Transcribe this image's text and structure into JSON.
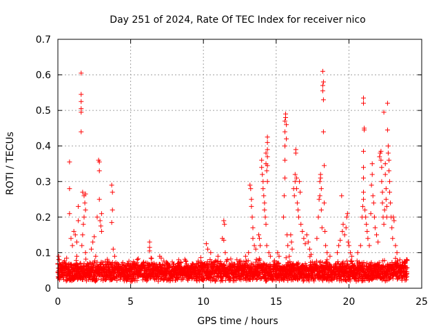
{
  "chart_data": {
    "type": "scatter",
    "title": "Day 251 of 2024, Rate Of TEC Index for receiver nico",
    "xlabel": "GPS time / hours",
    "ylabel": "ROTI / TECUs",
    "xlim": [
      0,
      25
    ],
    "ylim": [
      0,
      0.7
    ],
    "xticks": [
      0,
      5,
      10,
      15,
      20,
      25
    ],
    "yticks": [
      0,
      0.1,
      0.2,
      0.3,
      0.4,
      0.5,
      0.6,
      0.7
    ],
    "grid": true,
    "marker": "+",
    "color": "#ff0000",
    "background_band": {
      "x_range": [
        0,
        24
      ],
      "baseline": 0.04,
      "spread": 0.035
    },
    "points": [
      [
        0.05,
        0.09
      ],
      [
        0.1,
        0.08
      ],
      [
        0.3,
        0.07
      ],
      [
        0.6,
        0.085
      ],
      [
        0.8,
        0.355
      ],
      [
        0.8,
        0.28
      ],
      [
        0.8,
        0.21
      ],
      [
        0.9,
        0.14
      ],
      [
        1.0,
        0.12
      ],
      [
        1.1,
        0.16
      ],
      [
        1.2,
        0.15
      ],
      [
        1.3,
        0.13
      ],
      [
        1.4,
        0.23
      ],
      [
        1.4,
        0.19
      ],
      [
        1.3,
        0.09
      ],
      [
        1.6,
        0.605
      ],
      [
        1.6,
        0.545
      ],
      [
        1.6,
        0.525
      ],
      [
        1.6,
        0.505
      ],
      [
        1.6,
        0.495
      ],
      [
        1.6,
        0.44
      ],
      [
        1.7,
        0.27
      ],
      [
        1.8,
        0.26
      ],
      [
        1.85,
        0.24
      ],
      [
        1.9,
        0.22
      ],
      [
        1.9,
        0.265
      ],
      [
        1.8,
        0.2
      ],
      [
        1.75,
        0.18
      ],
      [
        1.7,
        0.15
      ],
      [
        1.65,
        0.12
      ],
      [
        1.9,
        0.1
      ],
      [
        2.3,
        0.11
      ],
      [
        2.4,
        0.13
      ],
      [
        2.5,
        0.145
      ],
      [
        2.6,
        0.09
      ],
      [
        2.7,
        0.2
      ],
      [
        2.8,
        0.36
      ],
      [
        2.85,
        0.355
      ],
      [
        2.85,
        0.33
      ],
      [
        2.85,
        0.25
      ],
      [
        2.9,
        0.19
      ],
      [
        2.95,
        0.175
      ],
      [
        3.0,
        0.16
      ],
      [
        3.0,
        0.21
      ],
      [
        3.7,
        0.29
      ],
      [
        3.75,
        0.27
      ],
      [
        3.75,
        0.22
      ],
      [
        3.7,
        0.185
      ],
      [
        3.8,
        0.11
      ],
      [
        3.9,
        0.09
      ],
      [
        4.8,
        0.07
      ],
      [
        5.2,
        0.075
      ],
      [
        6.3,
        0.13
      ],
      [
        6.3,
        0.115
      ],
      [
        6.3,
        0.105
      ],
      [
        7.0,
        0.09
      ],
      [
        7.1,
        0.085
      ],
      [
        7.5,
        0.07
      ],
      [
        8.3,
        0.08
      ],
      [
        8.8,
        0.075
      ],
      [
        10.2,
        0.125
      ],
      [
        10.3,
        0.11
      ],
      [
        10.5,
        0.1
      ],
      [
        11.0,
        0.09
      ],
      [
        11.3,
        0.14
      ],
      [
        11.4,
        0.135
      ],
      [
        11.4,
        0.19
      ],
      [
        11.45,
        0.18
      ],
      [
        11.5,
        0.1
      ],
      [
        12.3,
        0.08
      ],
      [
        13.2,
        0.29
      ],
      [
        13.25,
        0.28
      ],
      [
        13.3,
        0.25
      ],
      [
        13.3,
        0.23
      ],
      [
        13.35,
        0.2
      ],
      [
        13.4,
        0.17
      ],
      [
        13.4,
        0.14
      ],
      [
        13.5,
        0.12
      ],
      [
        13.6,
        0.11
      ],
      [
        13.1,
        0.1
      ],
      [
        12.9,
        0.09
      ],
      [
        13.8,
        0.15
      ],
      [
        13.85,
        0.14
      ],
      [
        13.9,
        0.12
      ],
      [
        14.0,
        0.36
      ],
      [
        14.0,
        0.34
      ],
      [
        14.05,
        0.32
      ],
      [
        14.1,
        0.3
      ],
      [
        14.1,
        0.28
      ],
      [
        14.15,
        0.26
      ],
      [
        14.2,
        0.24
      ],
      [
        14.2,
        0.22
      ],
      [
        14.25,
        0.2
      ],
      [
        14.3,
        0.18
      ],
      [
        14.3,
        0.38
      ],
      [
        14.3,
        0.35
      ],
      [
        14.4,
        0.425
      ],
      [
        14.4,
        0.41
      ],
      [
        14.4,
        0.39
      ],
      [
        14.4,
        0.37
      ],
      [
        14.4,
        0.345
      ],
      [
        14.35,
        0.33
      ],
      [
        14.4,
        0.3
      ],
      [
        14.35,
        0.12
      ],
      [
        14.5,
        0.1
      ],
      [
        14.6,
        0.09
      ],
      [
        15.1,
        0.1
      ],
      [
        15.2,
        0.09
      ],
      [
        15.5,
        0.2
      ],
      [
        15.55,
        0.26
      ],
      [
        15.6,
        0.31
      ],
      [
        15.6,
        0.36
      ],
      [
        15.6,
        0.4
      ],
      [
        15.6,
        0.44
      ],
      [
        15.6,
        0.47
      ],
      [
        15.65,
        0.48
      ],
      [
        15.65,
        0.49
      ],
      [
        15.7,
        0.46
      ],
      [
        15.7,
        0.42
      ],
      [
        15.75,
        0.15
      ],
      [
        15.8,
        0.12
      ],
      [
        15.9,
        0.09
      ],
      [
        16.0,
        0.15
      ],
      [
        16.05,
        0.13
      ],
      [
        16.1,
        0.11
      ],
      [
        16.2,
        0.28
      ],
      [
        16.25,
        0.26
      ],
      [
        16.3,
        0.3
      ],
      [
        16.3,
        0.32
      ],
      [
        16.35,
        0.38
      ],
      [
        16.35,
        0.39
      ],
      [
        16.4,
        0.31
      ],
      [
        16.4,
        0.28
      ],
      [
        16.45,
        0.24
      ],
      [
        16.5,
        0.22
      ],
      [
        16.55,
        0.2
      ],
      [
        16.6,
        0.3
      ],
      [
        16.65,
        0.27
      ],
      [
        16.7,
        0.18
      ],
      [
        16.8,
        0.16
      ],
      [
        16.9,
        0.14
      ],
      [
        17.0,
        0.125
      ],
      [
        17.1,
        0.15
      ],
      [
        17.2,
        0.13
      ],
      [
        17.3,
        0.11
      ],
      [
        17.4,
        0.095
      ],
      [
        17.8,
        0.14
      ],
      [
        17.9,
        0.2
      ],
      [
        17.95,
        0.25
      ],
      [
        18.0,
        0.26
      ],
      [
        18.0,
        0.3
      ],
      [
        18.05,
        0.31
      ],
      [
        18.05,
        0.32
      ],
      [
        18.1,
        0.28
      ],
      [
        18.1,
        0.22
      ],
      [
        18.15,
        0.17
      ],
      [
        18.2,
        0.61
      ],
      [
        18.2,
        0.57
      ],
      [
        18.2,
        0.555
      ],
      [
        18.25,
        0.58
      ],
      [
        18.25,
        0.53
      ],
      [
        18.25,
        0.44
      ],
      [
        18.3,
        0.345
      ],
      [
        18.3,
        0.24
      ],
      [
        18.35,
        0.16
      ],
      [
        18.4,
        0.12
      ],
      [
        18.5,
        0.1
      ],
      [
        18.7,
        0.09
      ],
      [
        19.2,
        0.1
      ],
      [
        19.3,
        0.12
      ],
      [
        19.4,
        0.135
      ],
      [
        19.5,
        0.26
      ],
      [
        19.55,
        0.16
      ],
      [
        19.6,
        0.18
      ],
      [
        19.7,
        0.15
      ],
      [
        19.8,
        0.17
      ],
      [
        19.85,
        0.2
      ],
      [
        19.9,
        0.21
      ],
      [
        19.95,
        0.13
      ],
      [
        20.0,
        0.12
      ],
      [
        20.1,
        0.1
      ],
      [
        20.2,
        0.09
      ],
      [
        20.6,
        0.1
      ],
      [
        20.8,
        0.12
      ],
      [
        20.9,
        0.2
      ],
      [
        20.95,
        0.23
      ],
      [
        21.0,
        0.25
      ],
      [
        21.0,
        0.27
      ],
      [
        21.0,
        0.31
      ],
      [
        21.0,
        0.34
      ],
      [
        21.0,
        0.385
      ],
      [
        21.05,
        0.445
      ],
      [
        21.05,
        0.45
      ],
      [
        21.0,
        0.52
      ],
      [
        21.0,
        0.535
      ],
      [
        21.1,
        0.22
      ],
      [
        21.15,
        0.2
      ],
      [
        21.2,
        0.18
      ],
      [
        21.25,
        0.16
      ],
      [
        21.3,
        0.14
      ],
      [
        21.4,
        0.12
      ],
      [
        21.5,
        0.21
      ],
      [
        21.55,
        0.29
      ],
      [
        21.6,
        0.32
      ],
      [
        21.6,
        0.35
      ],
      [
        21.65,
        0.26
      ],
      [
        21.7,
        0.24
      ],
      [
        21.75,
        0.2
      ],
      [
        21.8,
        0.17
      ],
      [
        21.9,
        0.15
      ],
      [
        22.0,
        0.13
      ],
      [
        22.1,
        0.37
      ],
      [
        22.15,
        0.38
      ],
      [
        22.2,
        0.385
      ],
      [
        22.2,
        0.36
      ],
      [
        22.25,
        0.34
      ],
      [
        22.25,
        0.3
      ],
      [
        22.3,
        0.27
      ],
      [
        22.3,
        0.24
      ],
      [
        22.35,
        0.2
      ],
      [
        22.4,
        0.18
      ],
      [
        22.4,
        0.495
      ],
      [
        22.45,
        0.22
      ],
      [
        22.5,
        0.35
      ],
      [
        22.5,
        0.32
      ],
      [
        22.55,
        0.28
      ],
      [
        22.55,
        0.25
      ],
      [
        22.6,
        0.23
      ],
      [
        22.6,
        0.2
      ],
      [
        22.65,
        0.52
      ],
      [
        22.65,
        0.445
      ],
      [
        22.7,
        0.4
      ],
      [
        22.7,
        0.38
      ],
      [
        22.75,
        0.36
      ],
      [
        22.75,
        0.33
      ],
      [
        22.8,
        0.3
      ],
      [
        22.8,
        0.27
      ],
      [
        22.85,
        0.24
      ],
      [
        22.9,
        0.2
      ],
      [
        22.95,
        0.17
      ],
      [
        23.0,
        0.14
      ],
      [
        23.05,
        0.2
      ],
      [
        23.1,
        0.19
      ],
      [
        23.2,
        0.12
      ],
      [
        23.3,
        0.1
      ],
      [
        23.5,
        0.08
      ],
      [
        23.8,
        0.07
      ]
    ]
  }
}
